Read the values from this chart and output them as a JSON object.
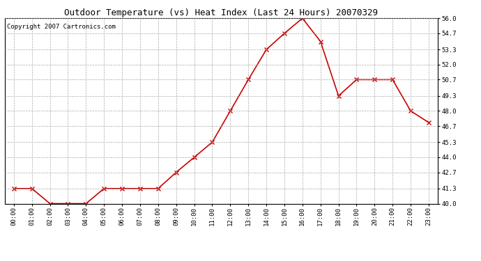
{
  "title": "Outdoor Temperature (vs) Heat Index (Last 24 Hours) 20070329",
  "copyright_text": "Copyright 2007 Cartronics.com",
  "x_labels": [
    "00:00",
    "01:00",
    "02:00",
    "03:00",
    "04:00",
    "05:00",
    "06:00",
    "07:00",
    "08:00",
    "09:00",
    "10:00",
    "11:00",
    "12:00",
    "13:00",
    "14:00",
    "15:00",
    "16:00",
    "17:00",
    "18:00",
    "19:00",
    "20:00",
    "21:00",
    "22:00",
    "23:00"
  ],
  "y_values": [
    41.3,
    41.3,
    40.0,
    40.0,
    40.0,
    41.3,
    41.3,
    41.3,
    41.3,
    42.7,
    44.0,
    45.3,
    48.0,
    50.7,
    53.3,
    54.7,
    56.0,
    54.0,
    49.3,
    50.7,
    50.7,
    50.7,
    48.0,
    47.0
  ],
  "line_color": "#cc0000",
  "marker": "x",
  "marker_color": "#cc0000",
  "marker_size": 4,
  "marker_linewidth": 1.0,
  "line_width": 1.2,
  "ylim": [
    40.0,
    56.0
  ],
  "yticks": [
    40.0,
    41.3,
    42.7,
    44.0,
    45.3,
    46.7,
    48.0,
    49.3,
    50.7,
    52.0,
    53.3,
    54.7,
    56.0
  ],
  "background_color": "#ffffff",
  "grid_color": "#aaaaaa",
  "title_fontsize": 9,
  "copyright_fontsize": 6.5,
  "tick_fontsize": 6.5,
  "figure_width": 6.9,
  "figure_height": 3.75,
  "dpi": 100
}
